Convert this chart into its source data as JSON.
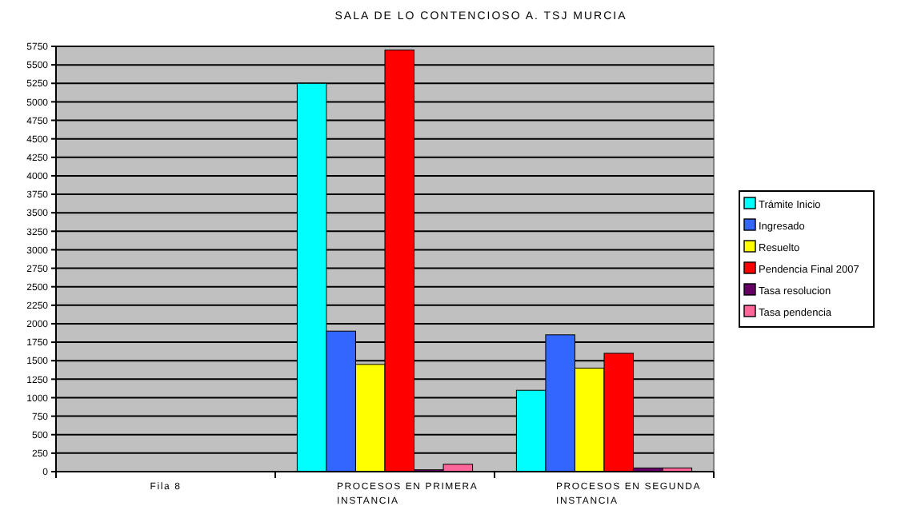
{
  "chart_data": {
    "type": "bar",
    "title": "SALA DE LO CONTENCIOSO A. TSJ MURCIA",
    "categories": [
      "Fila 8",
      "PROCESOS EN PRIMERA INSTANCIA",
      "PROCESOS EN SEGUNDA INSTANCIA"
    ],
    "series": [
      {
        "name": "Trámite Inicio",
        "color": "#00ffff",
        "values": [
          null,
          5250,
          1100
        ]
      },
      {
        "name": "Ingresado",
        "color": "#3366ff",
        "values": [
          null,
          1900,
          1850
        ]
      },
      {
        "name": "Resuelto",
        "color": "#ffff00",
        "values": [
          null,
          1450,
          1400
        ]
      },
      {
        "name": "Pendencia Final 2007",
        "color": "#ff0000",
        "values": [
          null,
          5700,
          1600
        ]
      },
      {
        "name": "Tasa resolucion",
        "color": "#660066",
        "values": [
          null,
          25,
          50
        ]
      },
      {
        "name": "Tasa pendencia",
        "color": "#ff6699",
        "values": [
          null,
          100,
          50
        ]
      }
    ],
    "ylim": [
      0,
      5750
    ],
    "yticks": [
      0,
      250,
      500,
      750,
      1000,
      1250,
      1500,
      1750,
      2000,
      2250,
      2500,
      2750,
      3000,
      3250,
      3500,
      3750,
      4000,
      4250,
      4500,
      4750,
      5000,
      5250,
      5500,
      5750
    ],
    "grid": "y",
    "legend": "right"
  }
}
